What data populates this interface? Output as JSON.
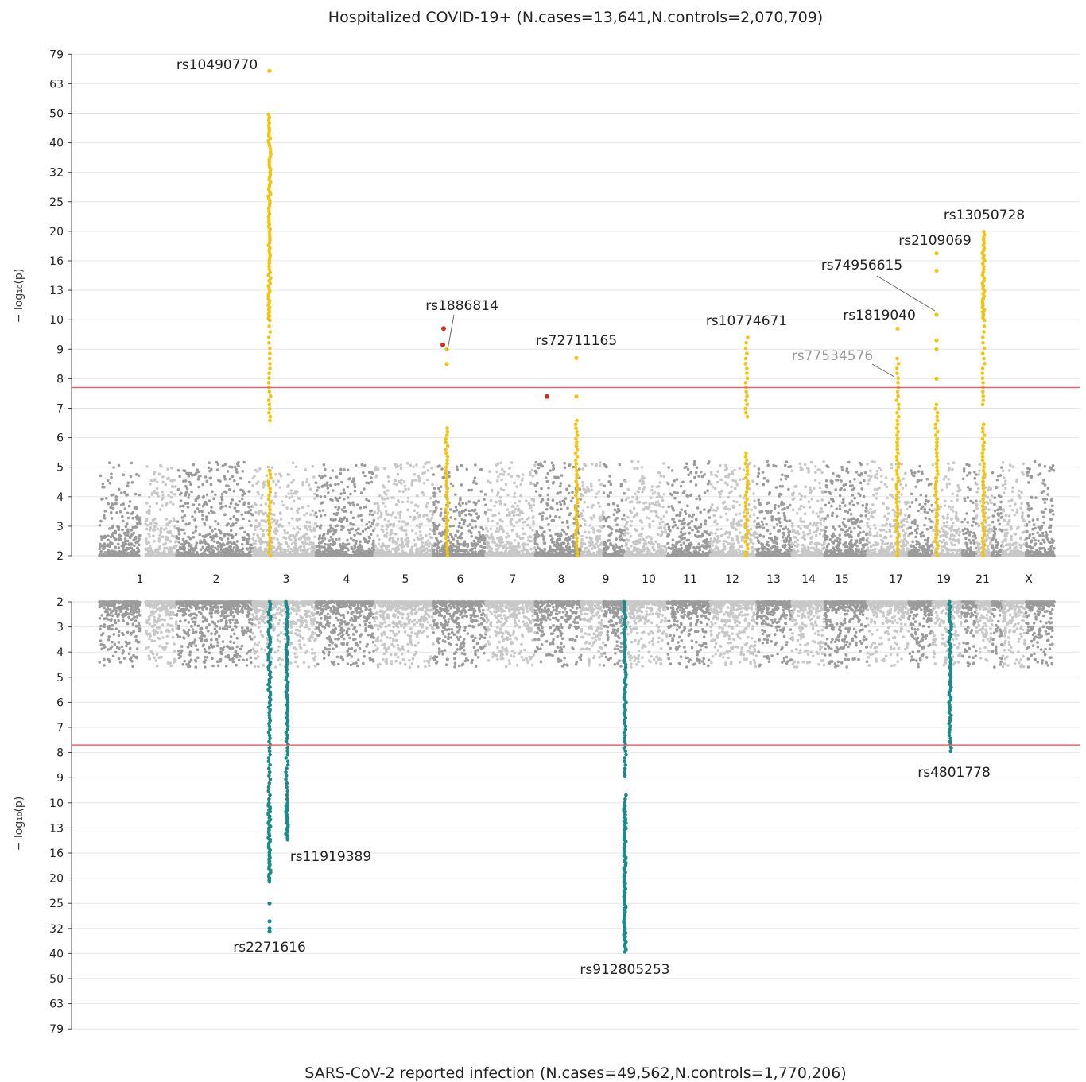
{
  "chart_data": [
    {
      "type": "scatter",
      "title": "Hospitalized COVID-19+ (N.cases=13,641,N.controls=2,070,709)",
      "ylabel": "− log₁₀(p)",
      "y_ticks": [
        "2",
        "3",
        "4",
        "5",
        "6",
        "7",
        "8",
        "9",
        "10",
        "13",
        "16",
        "20",
        "25",
        "32",
        "40",
        "50",
        "63",
        "79"
      ],
      "ylim": [
        2,
        79
      ],
      "genome_wide_threshold": 7.7,
      "threshold_color": "#e8646c",
      "highlight_color": "#f2c40f",
      "novel_color": "#d62c1f",
      "chromosome_colors": [
        "#9b9b9b",
        "#c8c8c8"
      ],
      "chromosomes": [
        "1",
        "2",
        "3",
        "4",
        "5",
        "6",
        "7",
        "8",
        "9",
        "10",
        "11",
        "12",
        "13",
        "14",
        "15",
        "17",
        "19",
        "21",
        "X"
      ],
      "annotations": [
        {
          "label": "rs10490770",
          "chrom": "3",
          "neglog10p": 70
        },
        {
          "label": "rs1886814",
          "chrom": "6",
          "neglog10p": 9.0
        },
        {
          "label": "rs72711165",
          "chrom": "8",
          "neglog10p": 8.7
        },
        {
          "label": "rs10774671",
          "chrom": "12",
          "neglog10p": 9.5
        },
        {
          "label": "rs77534576",
          "chrom": "17",
          "neglog10p": 8.6,
          "faded": true
        },
        {
          "label": "rs1819040",
          "chrom": "17",
          "neglog10p": 9.7
        },
        {
          "label": "rs74956615",
          "chrom": "19",
          "neglog10p": 10.5
        },
        {
          "label": "rs2109069",
          "chrom": "19",
          "neglog10p": 17
        },
        {
          "label": "rs13050728",
          "chrom": "21",
          "neglog10p": 20
        }
      ]
    },
    {
      "type": "scatter",
      "title": "SARS-CoV-2 reported infection (N.cases=49,562,N.controls=1,770,206)",
      "ylabel": "− log₁₀(p)",
      "y_ticks": [
        "2",
        "3",
        "4",
        "5",
        "6",
        "7",
        "8",
        "9",
        "10",
        "13",
        "16",
        "20",
        "25",
        "32",
        "40",
        "50",
        "63",
        "79"
      ],
      "ylim": [
        2,
        79
      ],
      "y_inverted": true,
      "genome_wide_threshold": 7.7,
      "threshold_color": "#e8646c",
      "highlight_color": "#1a8a8a",
      "annotations": [
        {
          "label": "rs2271616",
          "chrom": "3",
          "neglog10p": 33
        },
        {
          "label": "rs11919389",
          "chrom": "3",
          "neglog10p": 14.5
        },
        {
          "label": "rs912805253",
          "chrom": "9",
          "neglog10p": 40
        },
        {
          "label": "rs4801778",
          "chrom": "19",
          "neglog10p": 8
        }
      ]
    }
  ]
}
